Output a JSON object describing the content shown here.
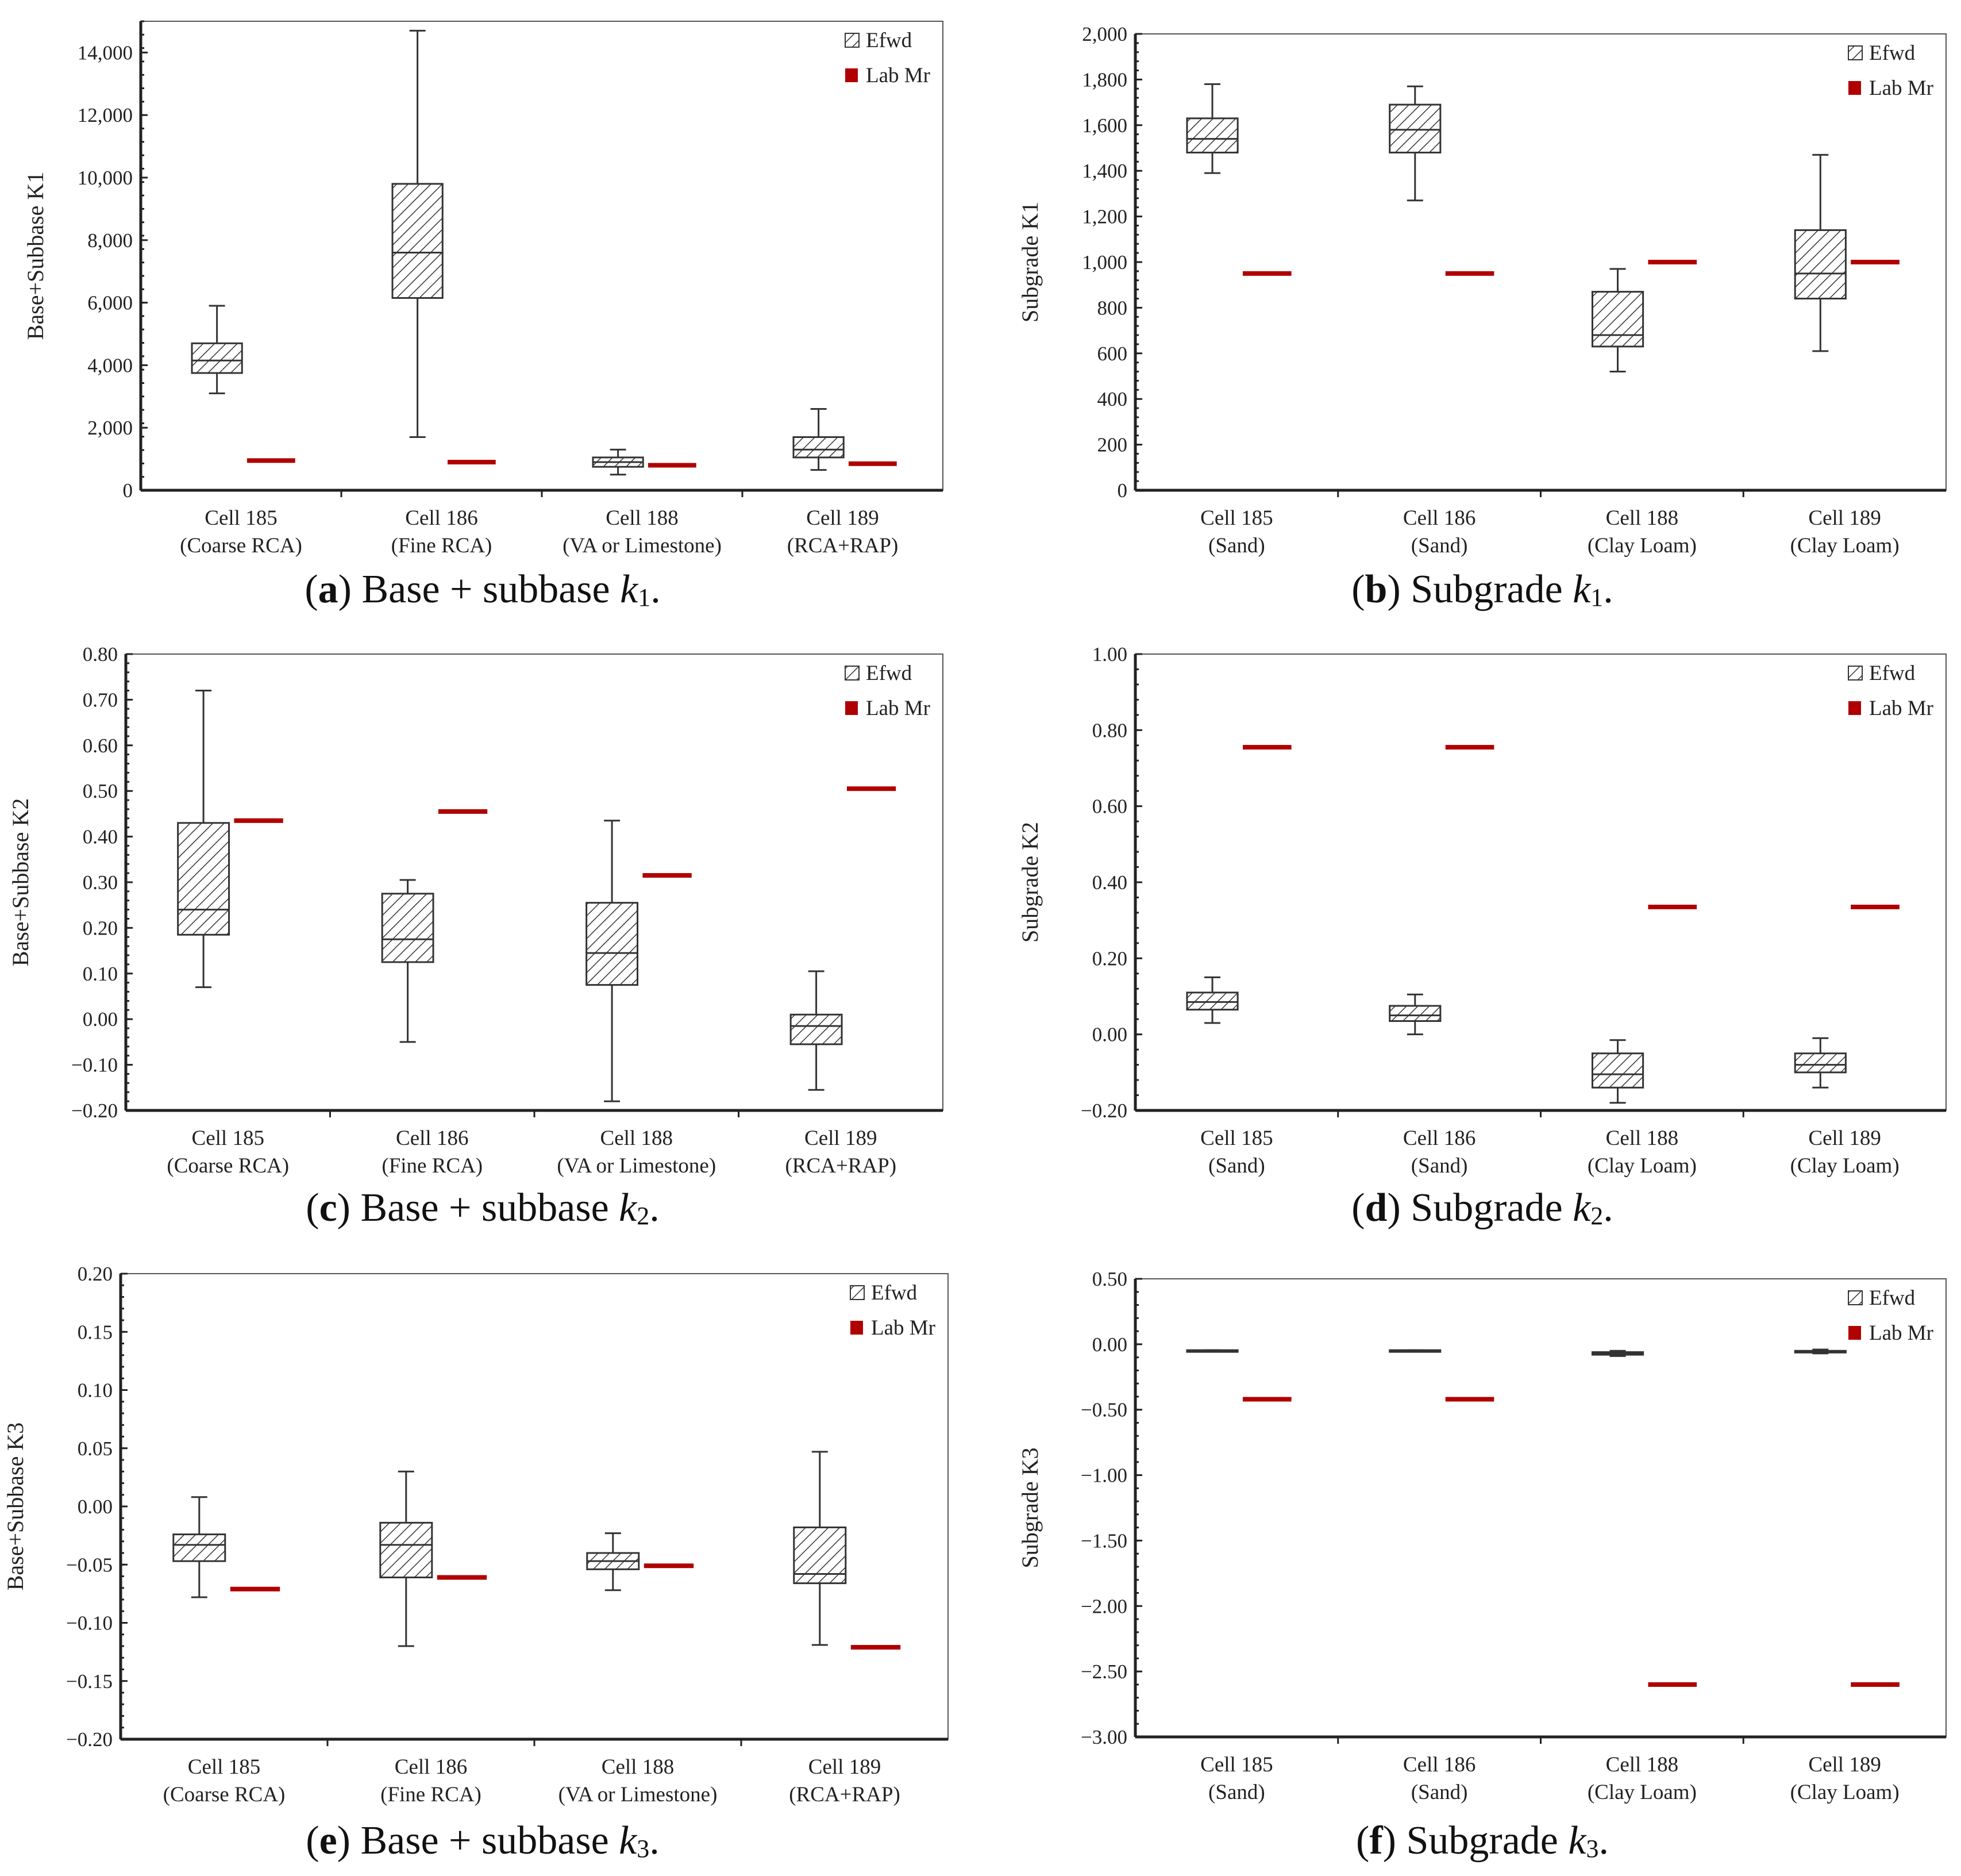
{
  "legend": {
    "efwd": "Efwd",
    "lab": "Lab Mr"
  },
  "colors": {
    "lab": "#b00000",
    "box_stroke": "#333333",
    "axis": "#333333"
  },
  "chart_data": [
    {
      "id": "a",
      "type": "box",
      "caption": {
        "letter": "a",
        "text": "Base + subbase ",
        "var": "k",
        "sub": "1",
        "end": "."
      },
      "ylabel": "Base+Subbase K1",
      "ylim": [
        0,
        15000
      ],
      "yticks": [
        0,
        2000,
        4000,
        6000,
        8000,
        10000,
        12000,
        14000
      ],
      "ytick_labels": [
        "0",
        "2,000",
        "4,000",
        "6,000",
        "8,000",
        "10,000",
        "12,000",
        "14,000"
      ],
      "categories": [
        [
          "Cell 185",
          "(Coarse RCA)"
        ],
        [
          "Cell 186",
          "(Fine RCA)"
        ],
        [
          "Cell 188",
          "(VA or Limestone)"
        ],
        [
          "Cell 189",
          "(RCA+RAP)"
        ]
      ],
      "efwd": [
        [
          3100,
          3750,
          4150,
          4700,
          5900
        ],
        [
          1700,
          6150,
          7600,
          9800,
          14700
        ],
        [
          500,
          750,
          900,
          1050,
          1300
        ],
        [
          650,
          1050,
          1300,
          1700,
          2600
        ]
      ],
      "lab_mr": [
        950,
        900,
        800,
        850
      ]
    },
    {
      "id": "b",
      "type": "box",
      "caption": {
        "letter": "b",
        "text": "Subgrade ",
        "var": "k",
        "sub": "1",
        "end": "."
      },
      "ylabel": "Subgrade K1",
      "ylim": [
        0,
        2000
      ],
      "yticks": [
        0,
        200,
        400,
        600,
        800,
        1000,
        1200,
        1400,
        1600,
        1800,
        2000
      ],
      "ytick_labels": [
        "0",
        "200",
        "400",
        "600",
        "800",
        "1,000",
        "1,200",
        "1,400",
        "1,600",
        "1,800",
        "2,000"
      ],
      "categories": [
        [
          "Cell 185",
          "(Sand)"
        ],
        [
          "Cell 186",
          "(Sand)"
        ],
        [
          "Cell 188",
          "(Clay Loam)"
        ],
        [
          "Cell 189",
          "(Clay Loam)"
        ]
      ],
      "efwd": [
        [
          1390,
          1480,
          1540,
          1630,
          1780
        ],
        [
          1270,
          1480,
          1580,
          1690,
          1770
        ],
        [
          520,
          630,
          680,
          870,
          970
        ],
        [
          610,
          840,
          950,
          1140,
          1470
        ]
      ],
      "lab_mr": [
        950,
        950,
        1000,
        1000
      ]
    },
    {
      "id": "c",
      "type": "box",
      "caption": {
        "letter": "c",
        "text": "Base + subbase ",
        "var": "k",
        "sub": "2",
        "end": "."
      },
      "ylabel": "Base+Subbase K2",
      "ylim": [
        -0.2,
        0.8
      ],
      "yticks": [
        -0.2,
        -0.1,
        0,
        0.1,
        0.2,
        0.3,
        0.4,
        0.5,
        0.6,
        0.7,
        0.8
      ],
      "ytick_labels": [
        "−0.20",
        "−0.10",
        "0.00",
        "0.10",
        "0.20",
        "0.30",
        "0.40",
        "0.50",
        "0.60",
        "0.70",
        "0.80"
      ],
      "categories": [
        [
          "Cell 185",
          "(Coarse RCA)"
        ],
        [
          "Cell 186",
          "(Fine RCA)"
        ],
        [
          "Cell 188",
          "(VA or Limestone)"
        ],
        [
          "Cell 189",
          "(RCA+RAP)"
        ]
      ],
      "efwd": [
        [
          0.07,
          0.185,
          0.24,
          0.43,
          0.72
        ],
        [
          -0.05,
          0.125,
          0.175,
          0.275,
          0.305
        ],
        [
          -0.18,
          0.075,
          0.145,
          0.255,
          0.435
        ],
        [
          -0.155,
          -0.055,
          -0.015,
          0.01,
          0.105
        ]
      ],
      "lab_mr": [
        0.435,
        0.455,
        0.315,
        0.505
      ]
    },
    {
      "id": "d",
      "type": "box",
      "caption": {
        "letter": "d",
        "text": "Subgrade ",
        "var": "k",
        "sub": "2",
        "end": "."
      },
      "ylabel": "Subgrade K2",
      "ylim": [
        -0.2,
        1.0
      ],
      "yticks": [
        -0.2,
        0,
        0.2,
        0.4,
        0.6,
        0.8,
        1.0
      ],
      "ytick_labels": [
        "−0.20",
        "0.00",
        "0.20",
        "0.40",
        "0.60",
        "0.80",
        "1.00"
      ],
      "categories": [
        [
          "Cell 185",
          "(Sand)"
        ],
        [
          "Cell 186",
          "(Sand)"
        ],
        [
          "Cell 188",
          "(Clay Loam)"
        ],
        [
          "Cell 189",
          "(Clay Loam)"
        ]
      ],
      "efwd": [
        [
          0.03,
          0.065,
          0.085,
          0.11,
          0.15
        ],
        [
          0.0,
          0.035,
          0.05,
          0.075,
          0.105
        ],
        [
          -0.18,
          -0.14,
          -0.105,
          -0.05,
          -0.015
        ],
        [
          -0.14,
          -0.1,
          -0.08,
          -0.05,
          -0.01
        ]
      ],
      "lab_mr": [
        0.755,
        0.755,
        0.335,
        0.335
      ]
    },
    {
      "id": "e",
      "type": "box",
      "caption": {
        "letter": "e",
        "text": "Base + subbase ",
        "var": "k",
        "sub": "3",
        "end": "."
      },
      "ylabel": "Base+Subbase K3",
      "ylim": [
        -0.2,
        0.2
      ],
      "yticks": [
        -0.2,
        -0.15,
        -0.1,
        -0.05,
        0,
        0.05,
        0.1,
        0.15,
        0.2
      ],
      "ytick_labels": [
        "−0.20",
        "−0.15",
        "−0.10",
        "−0.05",
        "0.00",
        "0.05",
        "0.10",
        "0.15",
        "0.20"
      ],
      "categories": [
        [
          "Cell 185",
          "(Coarse RCA)"
        ],
        [
          "Cell 186",
          "(Fine RCA)"
        ],
        [
          "Cell 188",
          "(VA or Limestone)"
        ],
        [
          "Cell 189",
          "(RCA+RAP)"
        ]
      ],
      "efwd": [
        [
          -0.078,
          -0.047,
          -0.033,
          -0.024,
          0.008
        ],
        [
          -0.12,
          -0.061,
          -0.033,
          -0.014,
          0.03
        ],
        [
          -0.072,
          -0.054,
          -0.047,
          -0.04,
          -0.023
        ],
        [
          -0.119,
          -0.066,
          -0.058,
          -0.018,
          0.047
        ]
      ],
      "lab_mr": [
        -0.071,
        -0.061,
        -0.051,
        -0.121
      ]
    },
    {
      "id": "f",
      "type": "box",
      "caption": {
        "letter": "f",
        "text": "Subgrade ",
        "var": "k",
        "sub": "3",
        "end": "."
      },
      "ylabel": "Subgrade K3",
      "ylim": [
        -3.0,
        0.5
      ],
      "yticks": [
        -3,
        -2.5,
        -2,
        -1.5,
        -1,
        -0.5,
        0,
        0.5
      ],
      "ytick_labels": [
        "−3.00",
        "−2.50",
        "−2.00",
        "−1.50",
        "−1.00",
        "−0.50",
        "0.00",
        "0.50"
      ],
      "categories": [
        [
          "Cell 185",
          "(Sand)"
        ],
        [
          "Cell 186",
          "(Sand)"
        ],
        [
          "Cell 188",
          "(Clay Loam)"
        ],
        [
          "Cell 189",
          "(Clay Loam)"
        ]
      ],
      "efwd": [
        [
          -0.055,
          -0.05,
          -0.05,
          -0.045,
          -0.045
        ],
        [
          -0.055,
          -0.05,
          -0.05,
          -0.045,
          -0.045
        ],
        [
          -0.09,
          -0.08,
          -0.07,
          -0.06,
          -0.05
        ],
        [
          -0.07,
          -0.06,
          -0.055,
          -0.05,
          -0.04
        ]
      ],
      "lab_mr": [
        -0.42,
        -0.42,
        -2.6,
        -2.6
      ]
    }
  ]
}
